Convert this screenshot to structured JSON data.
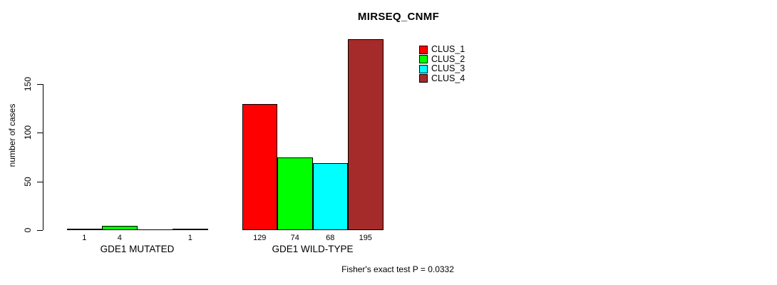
{
  "chart_data": {
    "type": "bar",
    "title": "MIRSEQ_CNMF",
    "ylabel": "number of cases",
    "xlabel": "",
    "ylim": [
      0,
      150
    ],
    "yticks": [
      0,
      50,
      100,
      150
    ],
    "grid": false,
    "legend_position": "top-right",
    "categories": [
      "GDE1 MUTATED",
      "GDE1 WILD-TYPE"
    ],
    "series": [
      {
        "name": "CLUS_1",
        "color": "#FF0000",
        "values": [
          1,
          129
        ]
      },
      {
        "name": "CLUS_2",
        "color": "#00FF00",
        "values": [
          4,
          74
        ]
      },
      {
        "name": "CLUS_3",
        "color": "#00FFFF",
        "values": [
          0,
          68
        ]
      },
      {
        "name": "CLUS_4",
        "color": "#A52A2A",
        "values": [
          1,
          195
        ]
      }
    ],
    "bar_value_labels": [
      [
        "1",
        "4",
        "",
        "1"
      ],
      [
        "129",
        "74",
        "68",
        "195"
      ]
    ],
    "annotation": "Fisher's exact test P = 0.0332",
    "axis_color": "#000000",
    "bar_border_color": "#000000",
    "background_color": "#FFFFFF"
  }
}
